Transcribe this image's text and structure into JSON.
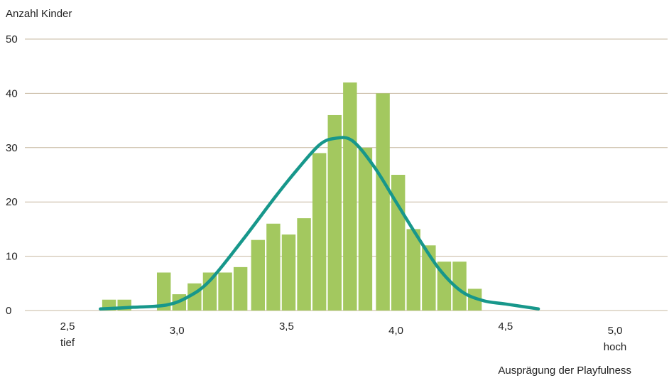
{
  "chart_data": {
    "type": "bar",
    "ylabel": "Anzahl Kinder",
    "xlabel": "Ausprägung der Playfulness",
    "ylim": [
      0,
      50
    ],
    "yticks": [
      0,
      10,
      20,
      30,
      40,
      50
    ],
    "xlim": [
      2.5,
      5.0
    ],
    "xticks": [
      {
        "value": 2.5,
        "label": "2,5",
        "sublabel": "tief"
      },
      {
        "value": 3.0,
        "label": "3,0",
        "sublabel": ""
      },
      {
        "value": 3.5,
        "label": "3,5",
        "sublabel": ""
      },
      {
        "value": 4.0,
        "label": "4,0",
        "sublabel": ""
      },
      {
        "value": 4.5,
        "label": "4,5",
        "sublabel": ""
      },
      {
        "value": 5.0,
        "label": "5,0",
        "sublabel": "hoch"
      }
    ],
    "grid": true,
    "bar_width": 0.063,
    "bars": [
      {
        "x": 2.69,
        "value": 2
      },
      {
        "x": 2.76,
        "value": 2
      },
      {
        "x": 2.94,
        "value": 7
      },
      {
        "x": 3.01,
        "value": 3
      },
      {
        "x": 3.08,
        "value": 5
      },
      {
        "x": 3.15,
        "value": 7
      },
      {
        "x": 3.22,
        "value": 7
      },
      {
        "x": 3.29,
        "value": 8
      },
      {
        "x": 3.37,
        "value": 13
      },
      {
        "x": 3.44,
        "value": 16
      },
      {
        "x": 3.51,
        "value": 14
      },
      {
        "x": 3.58,
        "value": 17
      },
      {
        "x": 3.65,
        "value": 29
      },
      {
        "x": 3.72,
        "value": 36
      },
      {
        "x": 3.79,
        "value": 42
      },
      {
        "x": 3.86,
        "value": 30
      },
      {
        "x": 3.94,
        "value": 40
      },
      {
        "x": 4.01,
        "value": 25
      },
      {
        "x": 4.08,
        "value": 15
      },
      {
        "x": 4.15,
        "value": 12
      },
      {
        "x": 4.22,
        "value": 9
      },
      {
        "x": 4.29,
        "value": 9
      },
      {
        "x": 4.36,
        "value": 4
      }
    ],
    "curve": [
      [
        2.65,
        0.3
      ],
      [
        2.8,
        0.6
      ],
      [
        2.95,
        1.0
      ],
      [
        3.05,
        2.5
      ],
      [
        3.15,
        5.5
      ],
      [
        3.3,
        13
      ],
      [
        3.45,
        21
      ],
      [
        3.55,
        26
      ],
      [
        3.65,
        30.5
      ],
      [
        3.72,
        31.7
      ],
      [
        3.8,
        31.3
      ],
      [
        3.9,
        26.5
      ],
      [
        4.0,
        20
      ],
      [
        4.1,
        13.5
      ],
      [
        4.2,
        7.5
      ],
      [
        4.3,
        3.5
      ],
      [
        4.4,
        1.8
      ],
      [
        4.5,
        1.2
      ],
      [
        4.65,
        0.3
      ]
    ],
    "colors": {
      "bar": "#a3c85f",
      "curve": "#17978b",
      "grid": "#c7b8a1",
      "text": "#222222"
    }
  }
}
